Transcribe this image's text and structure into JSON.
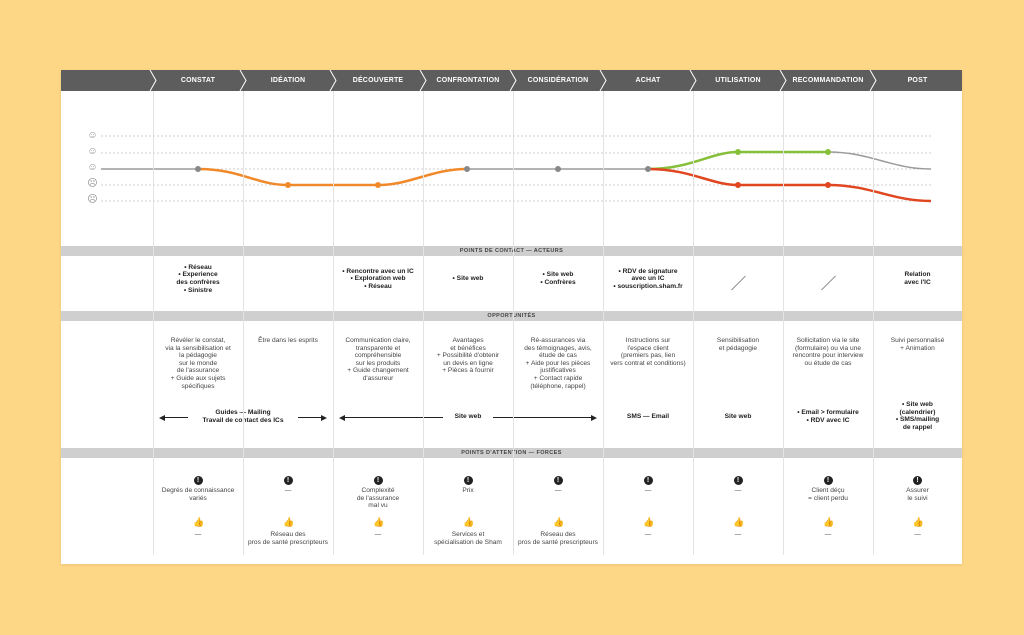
{
  "phases": [
    "CONSTAT",
    "IDÉATION",
    "DÉCOUVERTE",
    "CONFRONTATION",
    "CONSIDÉRATION",
    "ACHAT",
    "UTILISATION",
    "RECOMMANDATION",
    "POST"
  ],
  "bands": {
    "contact": "POINTS DE CONTACT — ACTEURS",
    "opportunites": "OPPORTUNITÉS",
    "attention": "POINTS D'ATTENTION — FORCES"
  },
  "colors": {
    "grey_line": "#9a9a9a",
    "orange": "#f0892a",
    "green": "#86bf3a",
    "red": "#e0461f",
    "bar": "#5d5d5d"
  },
  "emotion_icons": [
    "very-happy-icon",
    "happy-icon",
    "neutral-icon",
    "sad-icon",
    "very-sad-icon"
  ],
  "contact_points": [
    "• Réseau\n• Experience\ndes confrères\n• Sinistre",
    "",
    "• Rencontre avec un IC\n• Exploration web\n• Réseau",
    "• Site web",
    "• Site web\n• Confrères",
    "• RDV de signature\navec un IC\n• souscription.sham.fr",
    "",
    "",
    "Relation\navec l'IC"
  ],
  "opportunities": [
    "Révéler le constat,\nvia la sensibilisation et\nla pédagogie\nsur le monde\nde l'assurance\n+ Guide aux sujets\nspécifiques",
    "Être dans les esprits",
    "Communication claire,\ntransparente et\ncompréhensible\nsur les produits\n+ Guide changement\nd'assureur",
    "Avantages\net bénéfices\n+ Possibilité d'obtenir\nun devis en ligne\n+ Pièces à fournir",
    "Ré-assurances via\ndes témoignages, avis,\nétude de cas\n+ Aide pour les pièces\njustificatives\n+ Contact rapide\n(téléphone, rappel)",
    "Instructions sur\nl'espace client\n(premiers pas, lien\nvers contrat et conditions)",
    "Sensibilisation\net pédagogie",
    "Sollicitation via le site\n(formulaire) ou via une\nrencontre pour interview\nou étude de cas",
    "Suivi personnalisé\n+ Animation"
  ],
  "channels": {
    "guides": "Guides — Mailing\nTravail de contact des ICs",
    "site_web": "Site web",
    "sms": "SMS — Email",
    "site_web_2": "Site web",
    "email_form": "• Email > formulaire\n• RDV avec IC",
    "post": "• Site web\n(calendrier)\n• SMS/mailing\nde rappel"
  },
  "attention": [
    "Degrés de connaissance\nvariés",
    "—",
    "Complexité\nde l'assurance\nmal vu",
    "Prix",
    "—",
    "—",
    "—",
    "Client déçu\n= client perdu",
    "Assurer\nle suivi"
  ],
  "forces": [
    "—",
    "Réseau des\npros de santé prescripteurs",
    "—",
    "Services et\nspécialisation de Sham",
    "Réseau des\npros de santé prescripteurs",
    "—",
    "—",
    "—",
    "—"
  ]
}
